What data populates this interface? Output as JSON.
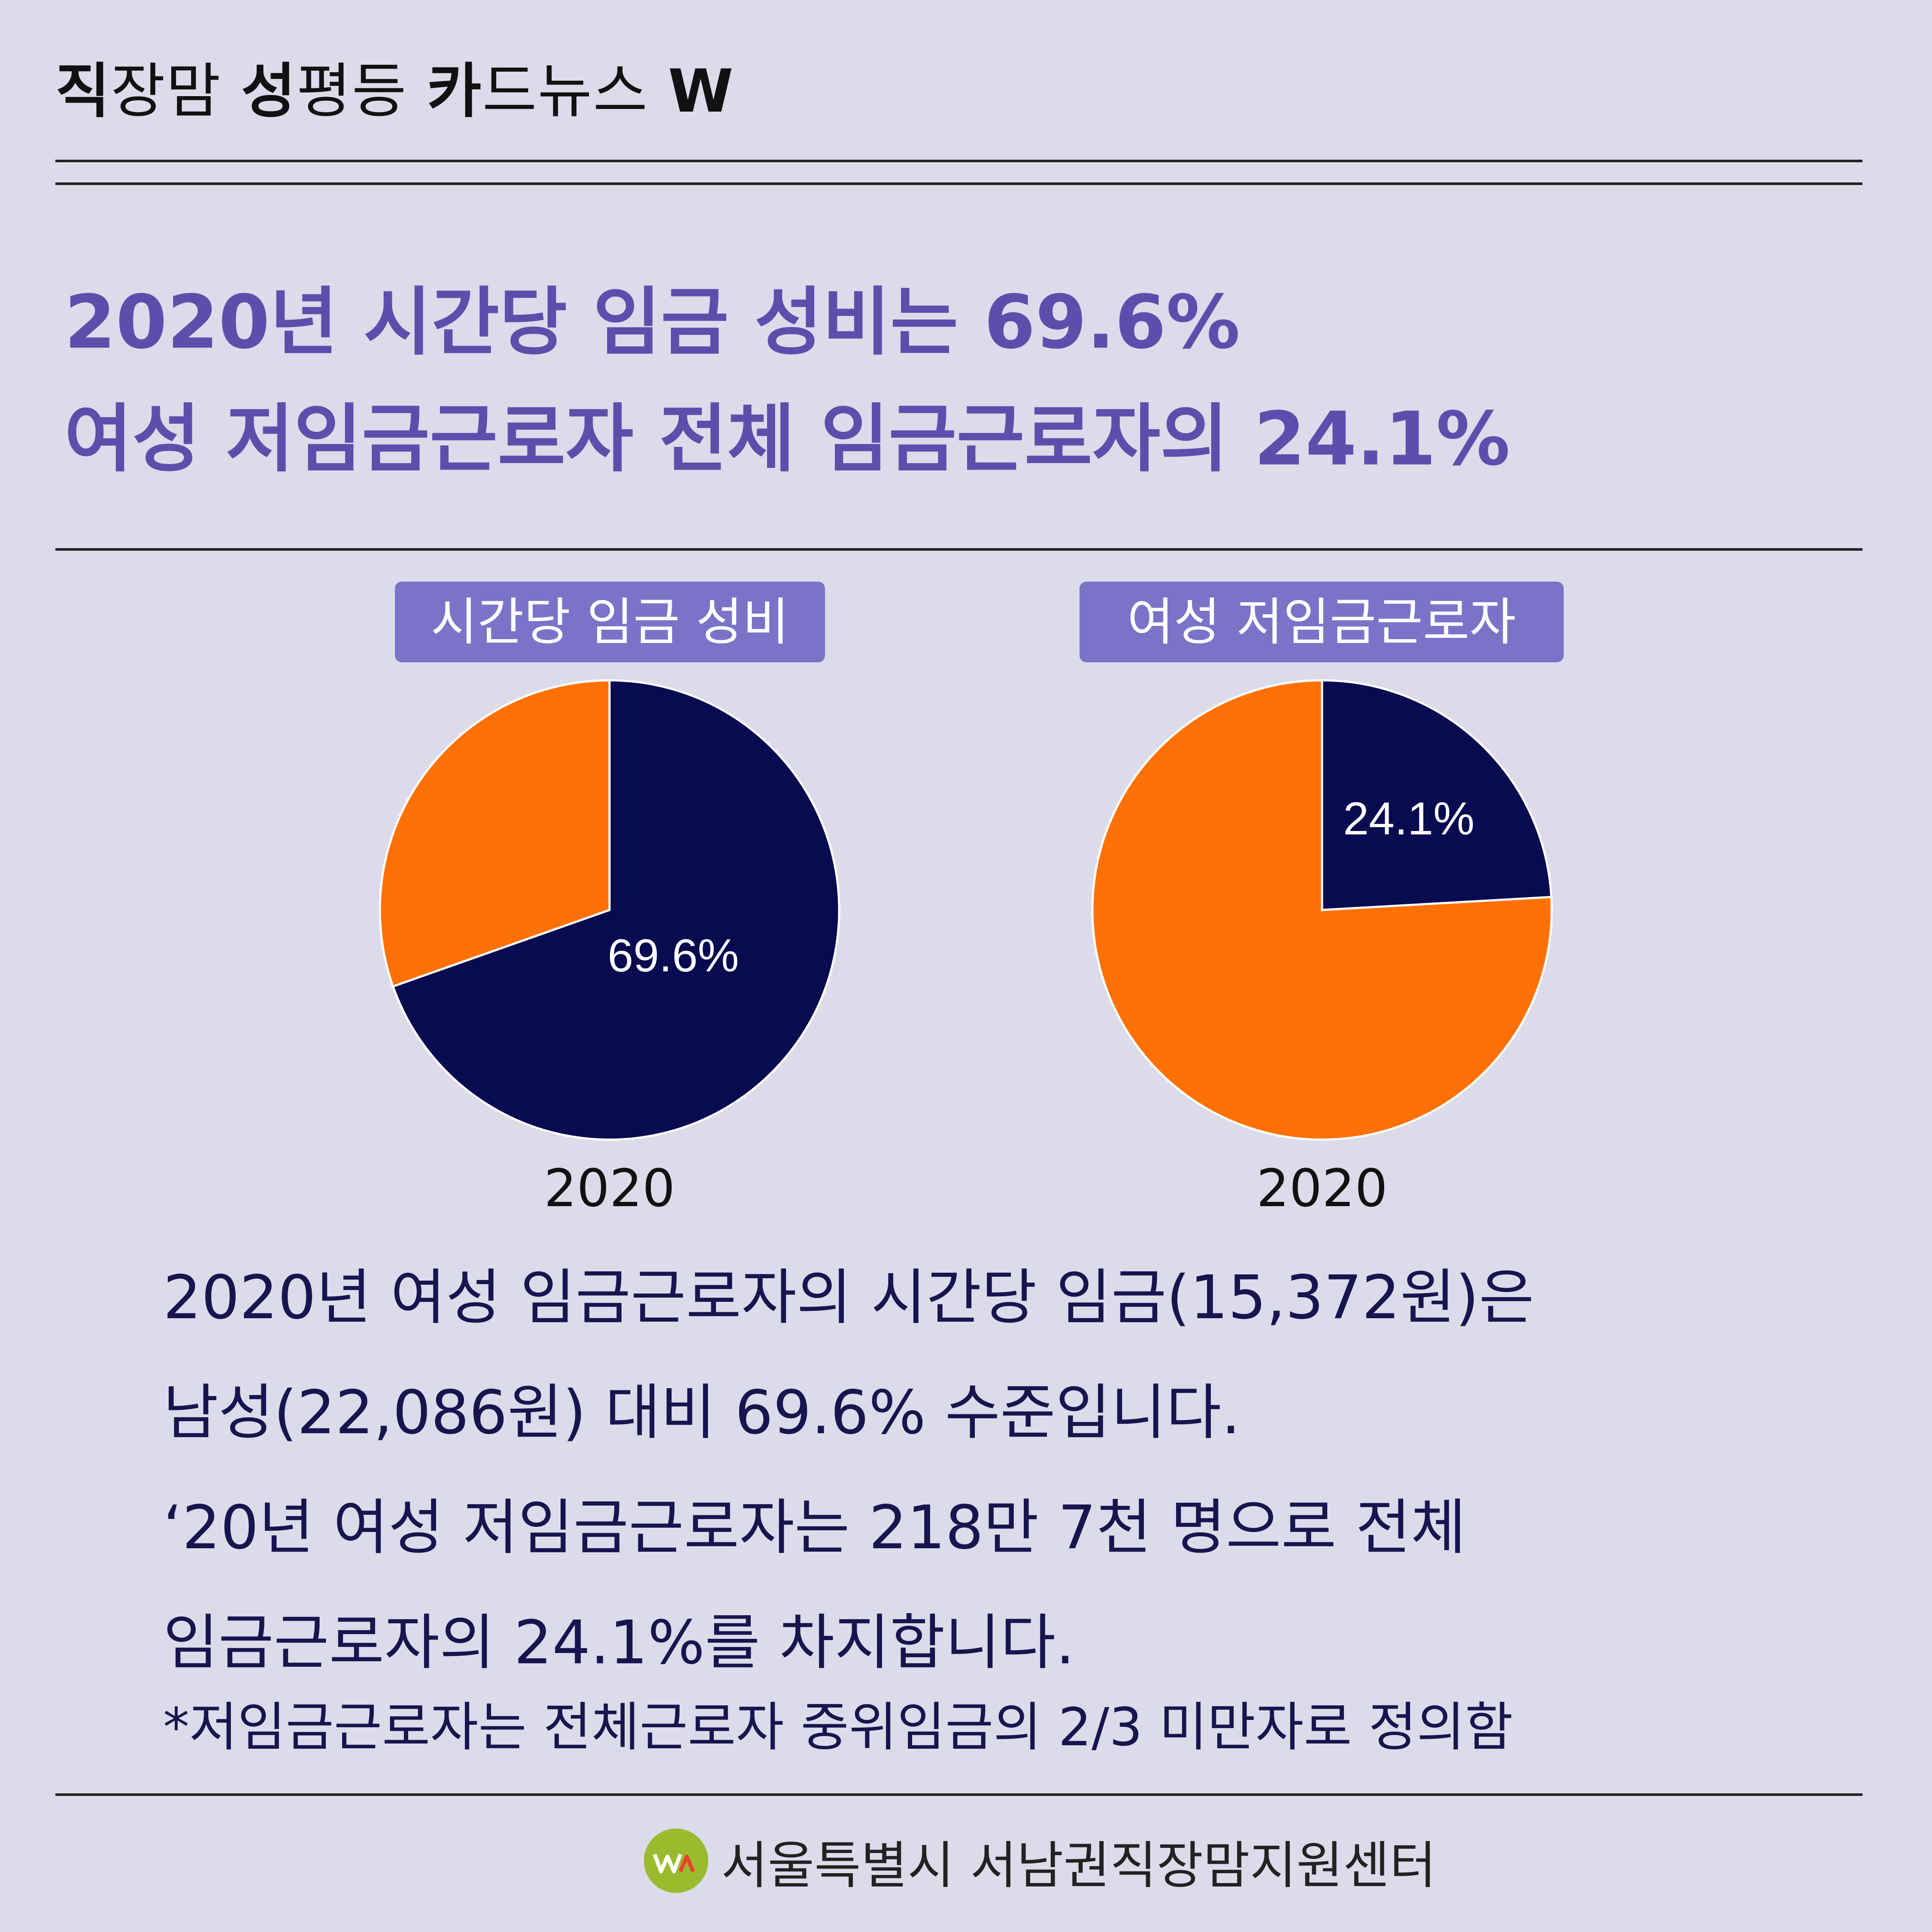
{
  "header": {
    "brand_parts": [
      {
        "text": "직",
        "bold": true
      },
      {
        "text": "장맘 ",
        "bold": false
      },
      {
        "text": "성",
        "bold": true
      },
      {
        "text": "평등 ",
        "bold": false
      },
      {
        "text": "카",
        "bold": true
      },
      {
        "text": "드뉴스 ",
        "bold": false
      },
      {
        "text": "W",
        "bold": true
      }
    ]
  },
  "headline": {
    "line1": "2020년 시간당 임금 성비는 69.6%",
    "line2": "여성 저임금근로자 전체 임금근로자의 24.1%"
  },
  "chart_data": [
    {
      "type": "pie",
      "title": "시간당 임금 성비",
      "categories": [
        "",
        ""
      ],
      "values": [
        69.6,
        30.4
      ],
      "colors": [
        "#080b50",
        "#ff7106"
      ],
      "data_label": "69.6%",
      "xlabel": "2020"
    },
    {
      "type": "pie",
      "title": "여성 저임금근로자",
      "categories": [
        "",
        ""
      ],
      "values": [
        24.1,
        75.9
      ],
      "colors": [
        "#080b50",
        "#ff7106"
      ],
      "data_label": "24.1%",
      "xlabel": "2020"
    }
  ],
  "body": {
    "lines": [
      "2020년 여성 임금근로자의 시간당 임금(15,372원)은",
      "남성(22,086원) 대비 69.6% 수준입니다.",
      "‘20년 여성 저임금근로자는 218만 7천 명으로 전체",
      "임금근로자의 24.1%를 차지합니다."
    ],
    "note": "*저임금근로자는 전체근로자 중위임금의 2/3 미만자로 정의함"
  },
  "footer": {
    "logo_text": "서울특별시 서남권직장맘지원센터"
  },
  "colors": {
    "background": "#dcdbea",
    "headline": "#5c4fac",
    "pill": "#7b73c8",
    "navy": "#080b50",
    "orange": "#ff7106"
  }
}
